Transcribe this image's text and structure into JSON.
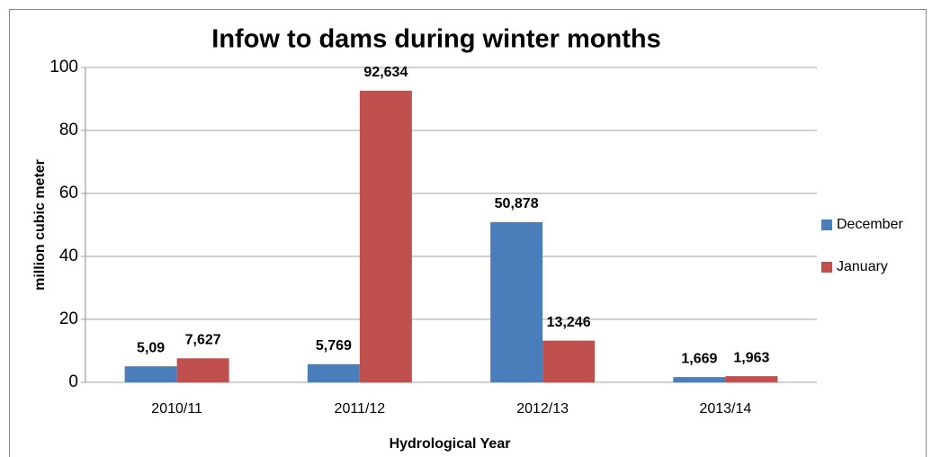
{
  "chart_data": {
    "type": "bar",
    "title": "Infow to dams during winter months",
    "x_label": "Hydrological Year",
    "y_label": "million cubic meter",
    "categories": [
      "2010/11",
      "2011/12",
      "2012/13",
      "2013/14"
    ],
    "series": [
      {
        "name": "December",
        "color": "#4a7ebb",
        "values": [
          5.09,
          5.769,
          50.878,
          1.669
        ],
        "value_labels": [
          "5,09",
          "5,769",
          "50,878",
          "1,669"
        ]
      },
      {
        "name": "January",
        "color": "#c0504d",
        "values": [
          7.627,
          92.634,
          13.246,
          1.963
        ],
        "value_labels": [
          "7,627",
          "92,634",
          "13,246",
          "1,963"
        ]
      }
    ],
    "ylim": [
      0,
      100
    ],
    "yticks": [
      0,
      20,
      40,
      60,
      80,
      100
    ],
    "grid": true,
    "legend": "right"
  }
}
